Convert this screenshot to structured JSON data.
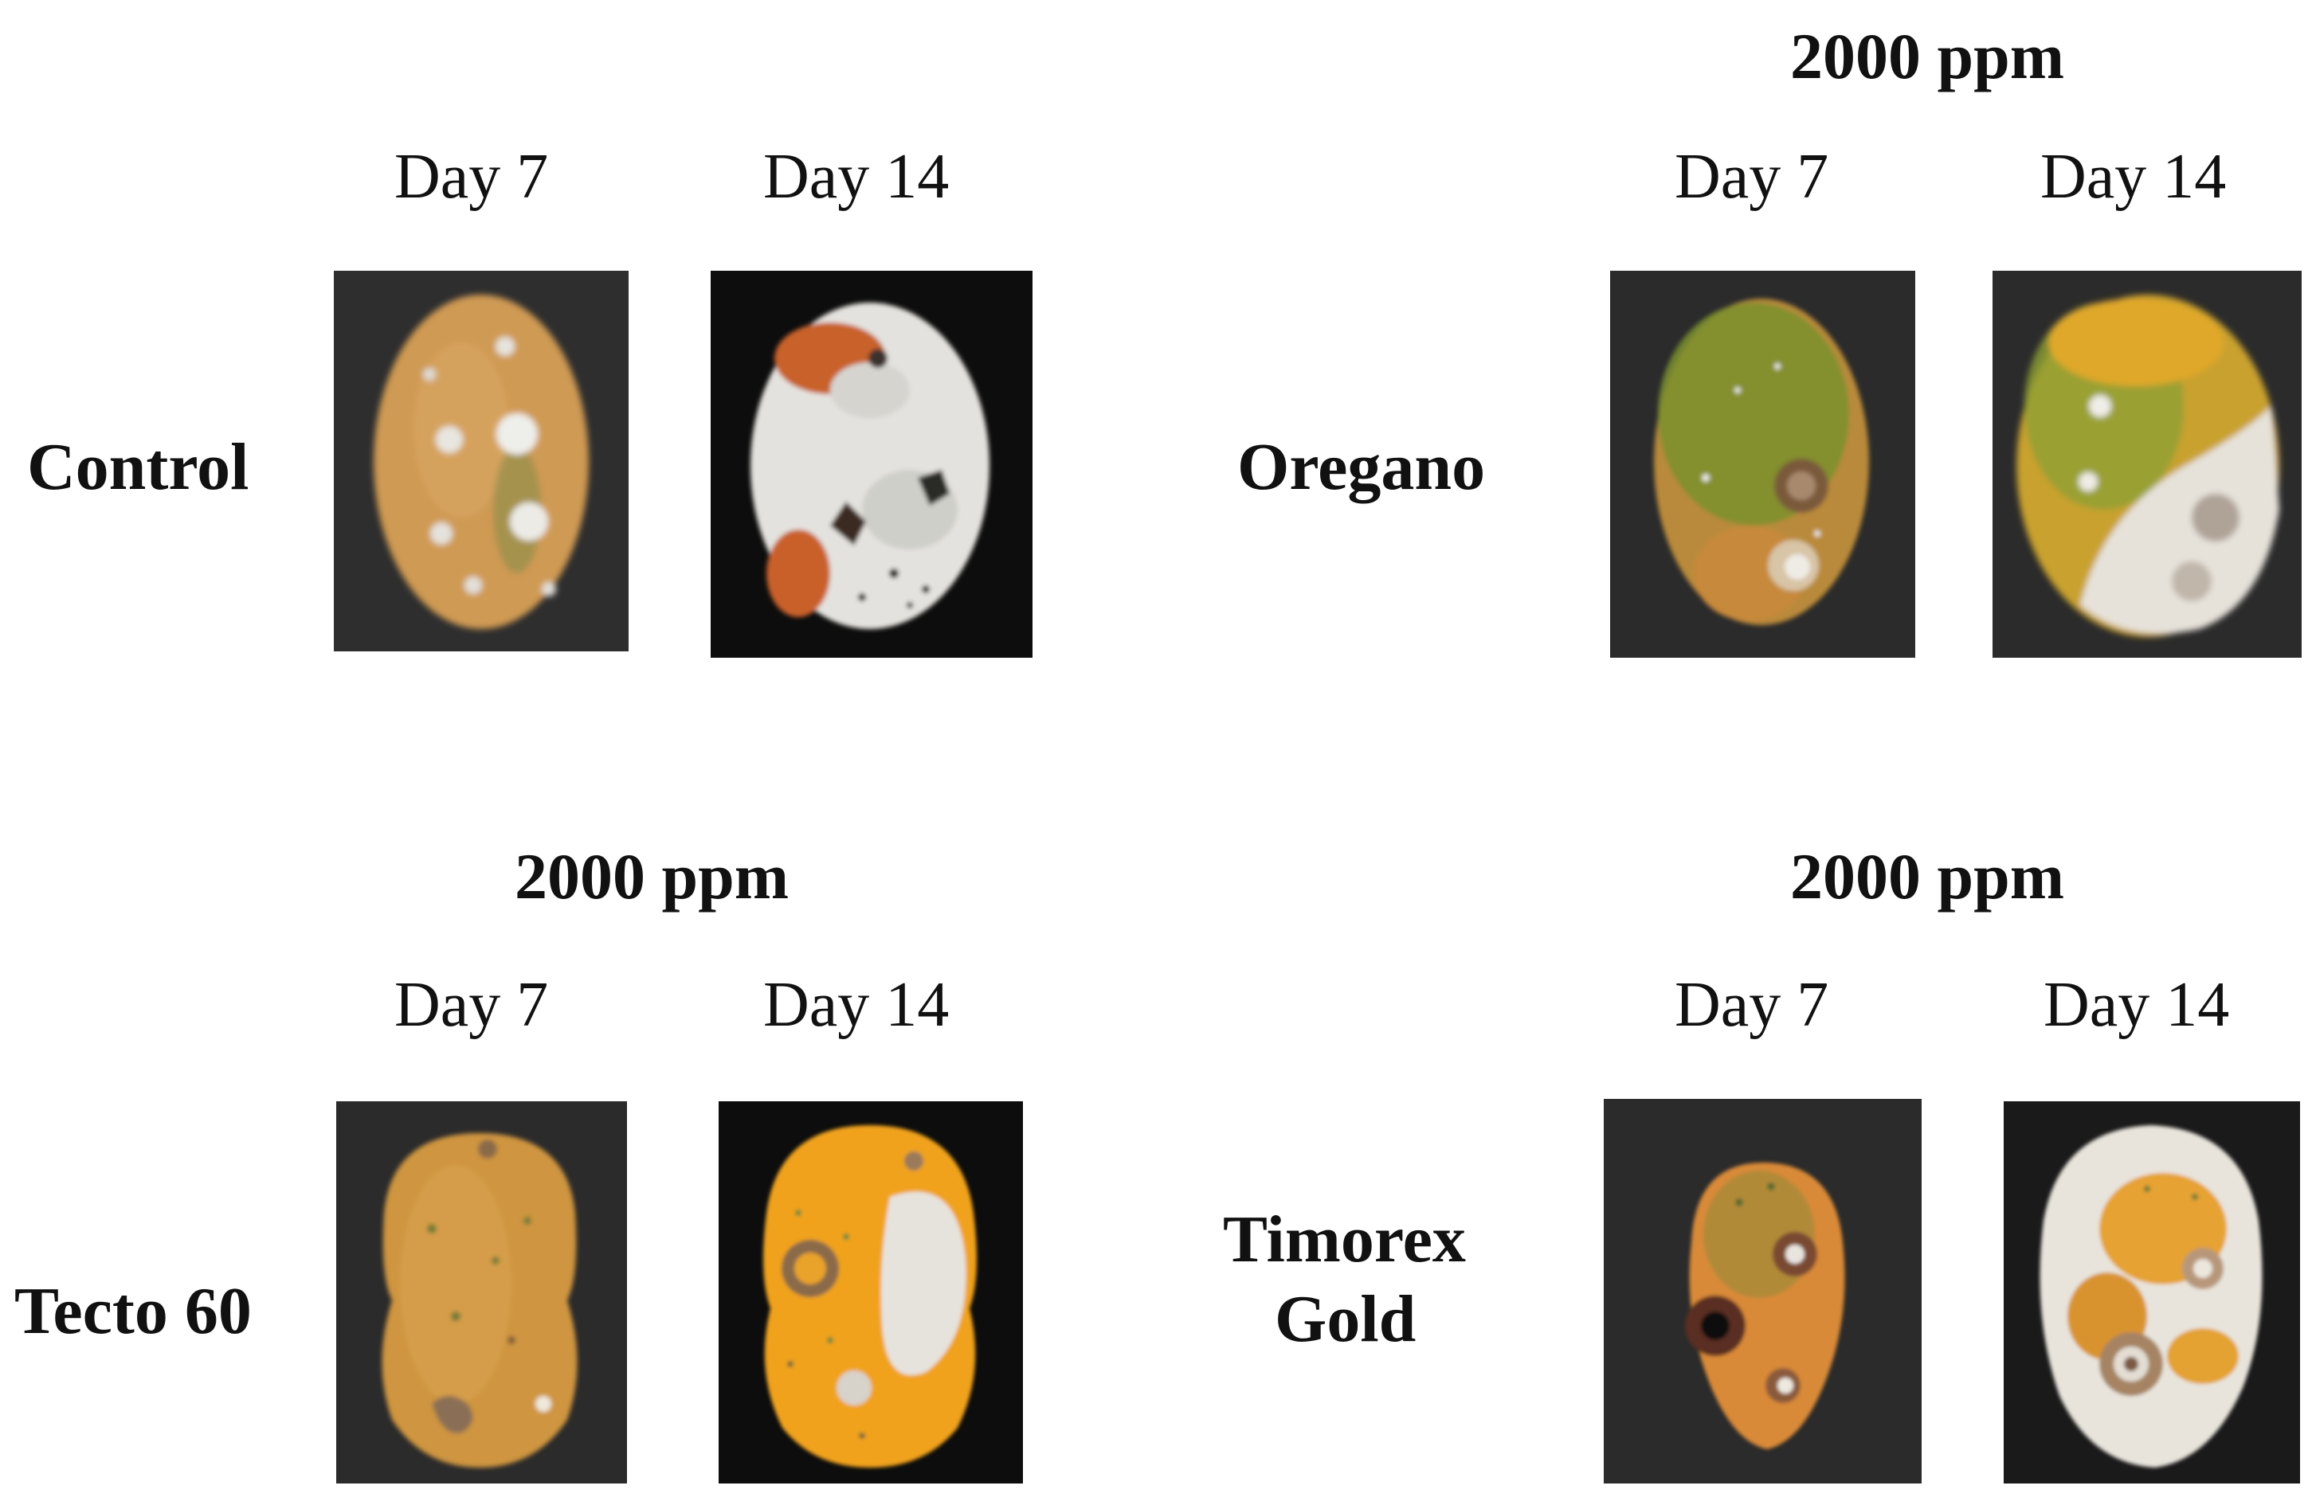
{
  "panels": {
    "control": {
      "treatment": "Control",
      "concentration": "",
      "day7": "Day 7",
      "day14": "Day 14"
    },
    "oregano": {
      "treatment": "Oregano",
      "concentration": "2000 ppm",
      "day7": "Day 7",
      "day14": "Day 14"
    },
    "tecto": {
      "treatment": "Tecto 60",
      "concentration": "2000 ppm",
      "day7": "Day 7",
      "day14": "Day 14"
    },
    "timorex": {
      "treatment_line1": "Timorex",
      "treatment_line2": "Gold",
      "concentration": "2000 ppm",
      "day7": "Day 7",
      "day14": "Day 14"
    }
  },
  "photo_colors": {
    "background_dark": "#2b2b2b",
    "background_black": "#0d0d0d",
    "papaya_orange": "#d99a3e",
    "papaya_bright": "#f0a21c",
    "papaya_green": "#7f8f2a",
    "mold_white": "#e9e6e0",
    "lesion_brown": "#6b4a33"
  }
}
